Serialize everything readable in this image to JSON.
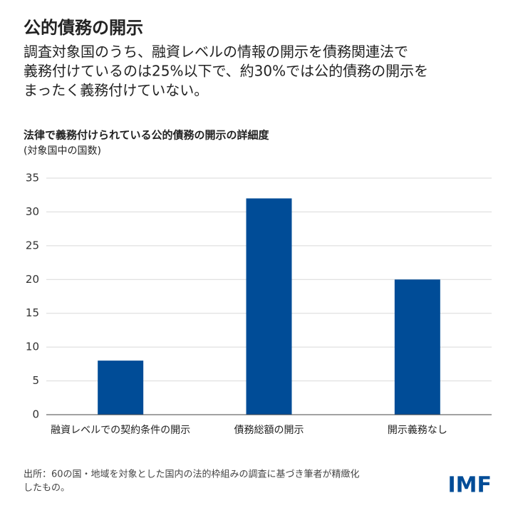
{
  "chart_data": {
    "type": "bar",
    "title": "公的債務の開示",
    "subtitle": [
      "調査対象国のうち、融資レベルの情報の開示を債務関連法で",
      "義務付けているのは25%以下で、約30%では公的債務の開示を",
      "まったく義務付けていない。"
    ],
    "chart_title": "法律で義務付けられている公的債務の開示の詳細度",
    "y_label": "(対象国中の国数)",
    "categories": [
      "融資レベルでの契約条件の開示",
      "債務総額の開示",
      "開示義務なし"
    ],
    "values": [
      8,
      32,
      20
    ],
    "color": "#004c97",
    "ylim": [
      0,
      35
    ],
    "yticks": [
      0,
      5,
      10,
      15,
      20,
      25,
      30,
      35
    ],
    "grid": true,
    "source": [
      "出所：60の国・地域を対象とした国内の法的枠組みの調査に基づき筆者が精緻化",
      "したもの。"
    ],
    "logo": "IMF"
  }
}
